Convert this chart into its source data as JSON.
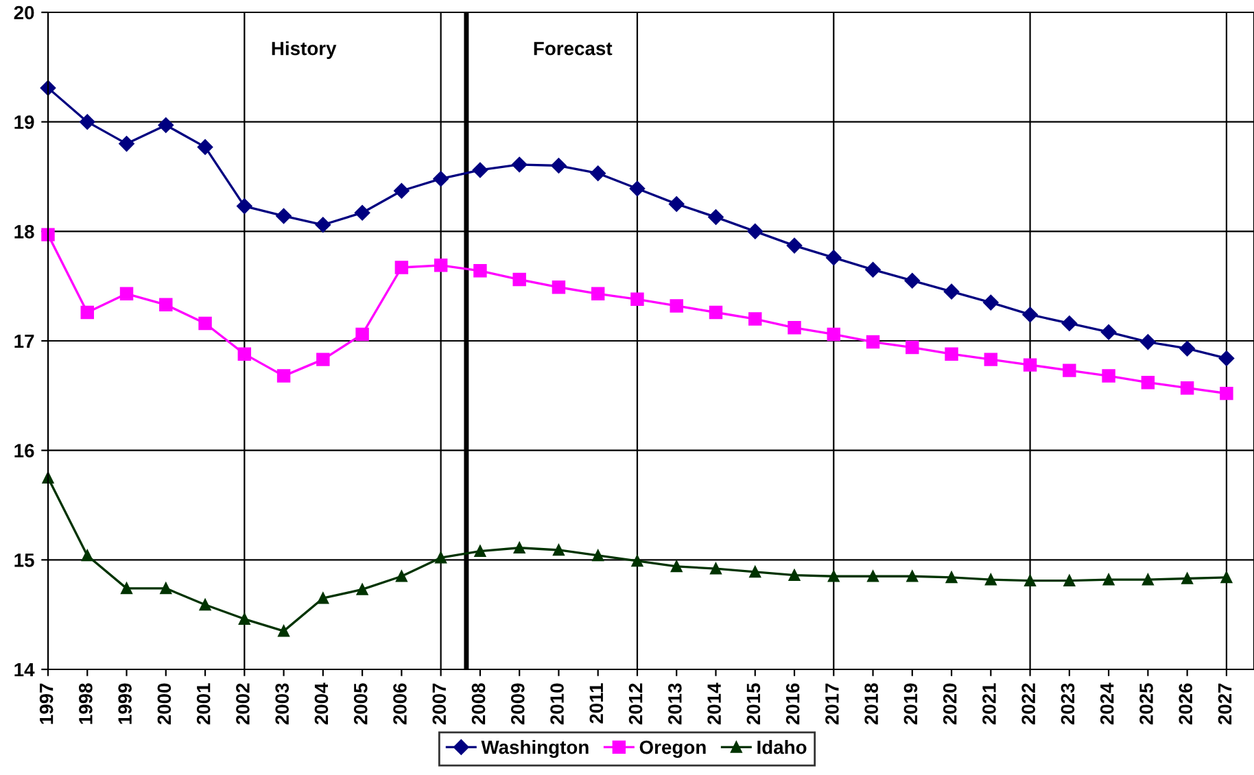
{
  "chart_data": {
    "type": "line",
    "x": [
      1997,
      1998,
      1999,
      2000,
      2001,
      2002,
      2003,
      2004,
      2005,
      2006,
      2007,
      2008,
      2009,
      2010,
      2011,
      2012,
      2013,
      2014,
      2015,
      2016,
      2017,
      2018,
      2019,
      2020,
      2021,
      2022,
      2023,
      2024,
      2025,
      2026,
      2027
    ],
    "series": [
      {
        "name": "Washington",
        "color": "#000080",
        "marker": "diamond",
        "values": [
          19.31,
          19.0,
          18.8,
          18.97,
          18.77,
          18.23,
          18.14,
          18.06,
          18.17,
          18.37,
          18.48,
          18.56,
          18.61,
          18.6,
          18.53,
          18.39,
          18.25,
          18.13,
          18.0,
          17.87,
          17.76,
          17.65,
          17.55,
          17.45,
          17.35,
          17.24,
          17.16,
          17.08,
          16.99,
          16.93,
          16.84
        ]
      },
      {
        "name": "Oregon",
        "color": "#ff00ff",
        "marker": "square",
        "values": [
          17.97,
          17.26,
          17.43,
          17.33,
          17.16,
          16.88,
          16.68,
          16.83,
          17.06,
          17.67,
          17.69,
          17.64,
          17.56,
          17.49,
          17.43,
          17.38,
          17.32,
          17.26,
          17.2,
          17.12,
          17.06,
          16.99,
          16.94,
          16.88,
          16.83,
          16.78,
          16.73,
          16.68,
          16.62,
          16.57,
          16.52
        ]
      },
      {
        "name": "Idaho",
        "color": "#003300",
        "marker": "triangle",
        "values": [
          15.75,
          15.04,
          14.74,
          14.74,
          14.59,
          14.46,
          14.35,
          14.65,
          14.73,
          14.85,
          15.02,
          15.08,
          15.11,
          15.09,
          15.04,
          14.99,
          14.94,
          14.92,
          14.89,
          14.86,
          14.85,
          14.85,
          14.85,
          14.84,
          14.82,
          14.81,
          14.81,
          14.82,
          14.82,
          14.83,
          14.84
        ]
      }
    ],
    "xlim": [
      1997,
      2027.7
    ],
    "xticks": [
      1997,
      1998,
      1999,
      2000,
      2001,
      2002,
      2003,
      2004,
      2005,
      2006,
      2007,
      2008,
      2009,
      2010,
      2011,
      2012,
      2013,
      2014,
      2015,
      2016,
      2017,
      2018,
      2019,
      2020,
      2021,
      2022,
      2023,
      2024,
      2025,
      2026,
      2027
    ],
    "ylim": [
      14,
      20
    ],
    "yticks": [
      14,
      15,
      16,
      17,
      18,
      19,
      20
    ],
    "grid": true,
    "legend": "bottom",
    "line_style": "solid",
    "ref_lines": [
      {
        "axis": "x",
        "value": 2007.65,
        "color": "#000000"
      }
    ],
    "annotations": [
      "History",
      "Forecast"
    ]
  }
}
